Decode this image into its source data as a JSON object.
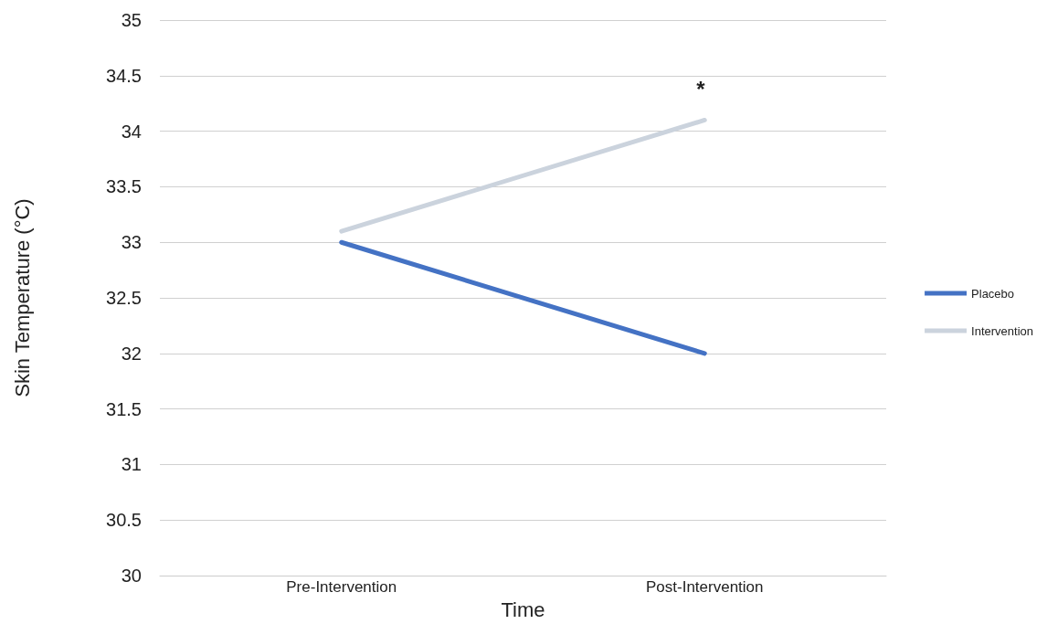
{
  "chart_data": {
    "type": "line",
    "xlabel": "Time",
    "ylabel": "Skin Temperature (°C)",
    "categories": [
      "Pre-Intervention",
      "Post-Intervention"
    ],
    "series": [
      {
        "name": "Placebo",
        "color": "#4472c4",
        "values": [
          33.0,
          32.0
        ]
      },
      {
        "name": "Intervention",
        "color": "#cbd3dd",
        "values": [
          33.1,
          34.1
        ]
      }
    ],
    "ylim": [
      30,
      35
    ],
    "yticks": [
      30,
      30.5,
      31,
      31.5,
      32,
      32.5,
      33,
      33.5,
      34,
      34.5,
      35
    ],
    "grid": "y",
    "legend": "right",
    "marker": "none",
    "line_style": "solid",
    "annotations": [
      "*"
    ]
  }
}
